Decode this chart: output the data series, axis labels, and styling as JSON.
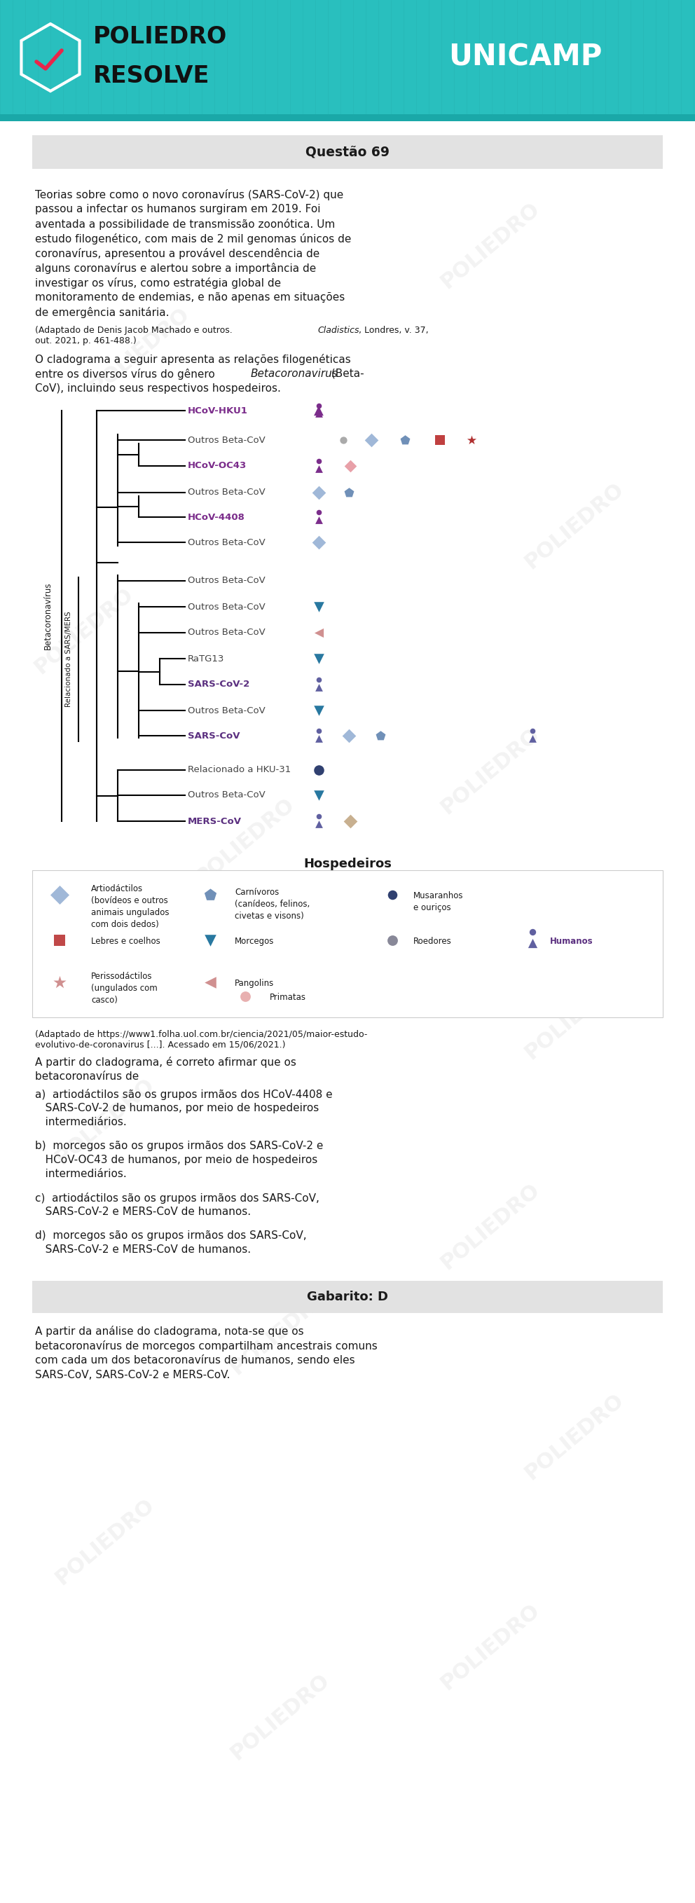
{
  "title": "Questão 69",
  "header_bg": "#29bfbe",
  "body_bg": "#ffffff",
  "question_box_bg": "#e0e0e0",
  "gabarito_box_bg": "#e0e0e0",
  "text_color": "#1a1a1a",
  "purple_virus": "#7B2D8B",
  "blue_virus": "#7B3F8C",
  "sars_color": "#7B3080",
  "mers_color": "#7B3080",
  "sars2_color": "#6B5090",
  "hospedeiros_title": "Hospedeiros",
  "gabarito_title": "Gabarito: D"
}
